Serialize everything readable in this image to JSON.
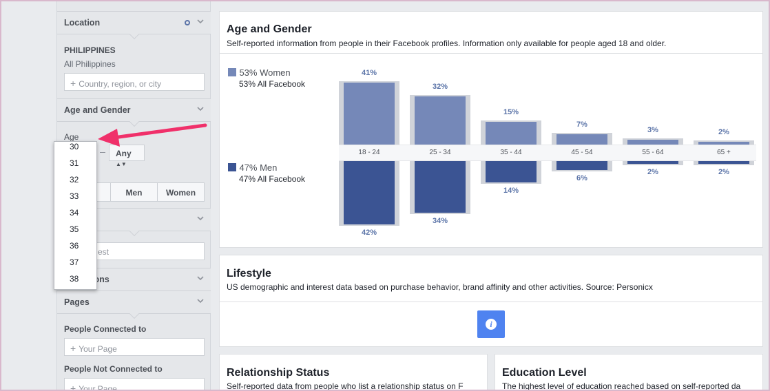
{
  "sidebar": {
    "location": {
      "header": "Location",
      "country": "PHILIPPINES",
      "scope": "All Philippines",
      "placeholder": "Country, region, or city"
    },
    "age_gender": {
      "header": "Age and Gender",
      "age_label": "Age",
      "age_to_value": "Any",
      "gender_buttons": [
        "Men",
        "Women"
      ]
    },
    "age_dropdown": [
      "30",
      "31",
      "32",
      "33",
      "34",
      "35",
      "36",
      "37",
      "38"
    ],
    "interests": {
      "header_fragment": "s",
      "placeholder_fragment": "est"
    },
    "connections": {
      "header_fragment": "ions"
    },
    "pages": {
      "header": "Pages",
      "connected_label": "People Connected to",
      "connected_placeholder": "Your Page",
      "not_connected_label": "People Not Connected to",
      "not_connected_placeholder": "Your Page"
    }
  },
  "age_gender_panel": {
    "title": "Age and Gender",
    "description": "Self-reported information from people in their Facebook profiles. Information only available for people aged 18 and older.",
    "women_legend": "53% Women",
    "women_sub": "53% All Facebook",
    "men_legend": "47% Men",
    "men_sub": "47% All Facebook",
    "colors": {
      "women": "#7588b8",
      "men": "#3b5493",
      "benchmark": "#d0d3d9"
    }
  },
  "chart_data": {
    "type": "bar",
    "categories": [
      "18 - 24",
      "25 - 34",
      "35 - 44",
      "45 - 54",
      "55 - 64",
      "65 +"
    ],
    "series": [
      {
        "name": "Women",
        "values": [
          41,
          32,
          15,
          7,
          3,
          2
        ],
        "labels": [
          "41%",
          "32%",
          "15%",
          "7%",
          "3%",
          "2%"
        ]
      },
      {
        "name": "Men",
        "values": [
          42,
          34,
          14,
          6,
          2,
          2
        ],
        "labels": [
          "42%",
          "34%",
          "14%",
          "6%",
          "2%",
          "2%"
        ]
      }
    ]
  },
  "lifestyle": {
    "title": "Lifestyle",
    "description": "US demographic and interest data based on purchase behavior, brand affinity and other activities. Source: Personicx",
    "icon": "info-icon"
  },
  "relationship": {
    "title": "Relationship Status",
    "description": "Self-reported data from people who list a relationship status on F"
  },
  "education": {
    "title": "Education Level",
    "description": "The highest level of education reached based on self-reported da"
  }
}
